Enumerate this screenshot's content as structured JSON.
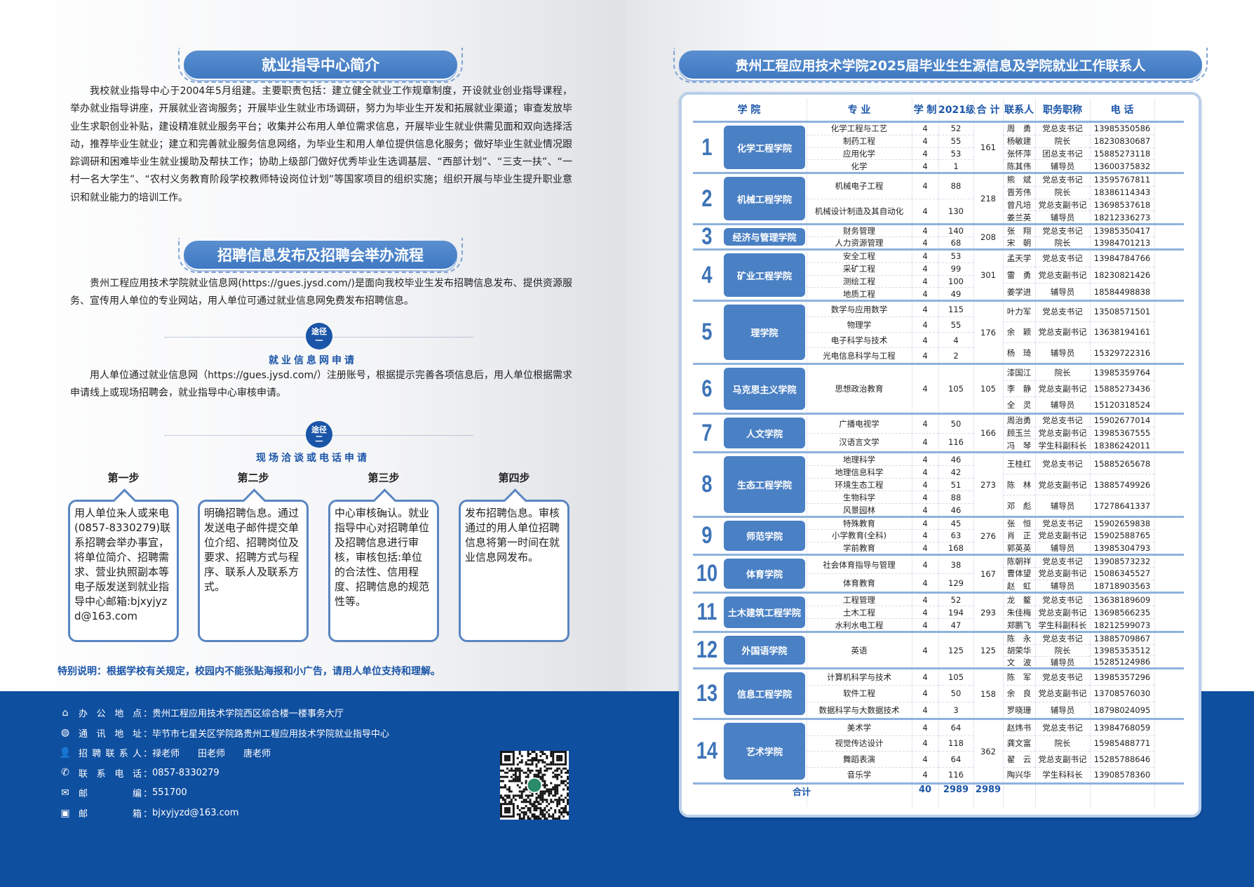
{
  "left": {
    "title1": "就业指导中心简介",
    "intro": "我校就业指导中心于2004年5月组建。主要职责包括：建立健全就业工作规章制度，开设就业创业指导课程，举办就业指导讲座，开展就业咨询服务；开展毕业生就业市场调研，努力为毕业生开发和拓展就业渠道；审查发放毕业生求职创业补贴，建设精准就业服务平台；收集并公布用人单位需求信息，开展毕业生就业供需见面和双向选择活动，推荐毕业生就业；建立和完善就业服务信息网络，为毕业生和用人单位提供信息化服务；做好毕业生就业情况跟踪调研和困难毕业生就业援助及帮扶工作；协助上级部门做好优秀毕业生选调基层、“西部计划”、“三支一扶”、“一村一名大学生”、“农村义务教育阶段学校教师特设岗位计划”等国家项目的组织实施；组织开展与毕业生提升职业意识和就业能力的培训工作。",
    "title2": "招聘信息发布及招聘会举办流程",
    "process_intro": "贵州工程应用技术学院就业信息网(https://gues.jysd.com/)是面向我校毕业生发布招聘信息发布、提供资源服务、宣传用人单位的专业网站，用人单位可通过就业信息网免费发布招聘信息。",
    "route1": {
      "badge_top": "途径",
      "badge_num": "一",
      "title": "就业信息网申请",
      "text": "用人单位通过就业信息网（https://gues.jysd.com/）注册账号，根据提示完善各项信息后，用人单位根据需求申请线上或现场招聘会，就业指导中心审核申请。"
    },
    "route2": {
      "badge_top": "途径",
      "badge_num": "二",
      "title": "现场洽谈或电话申请"
    },
    "steps": [
      {
        "label": "第一步",
        "text": "用人单位来人或来电(0857-8330279)联系招聘会举办事宜，将单位简介、招聘需求、营业执照副本等电子版发送到就业指导中心邮箱:bjxyjyzd@163.com"
      },
      {
        "label": "第二步",
        "text": "明确招聘信息。通过发送电子邮件提交单位介绍、招聘岗位及要求、招聘方式与程序、联系人及联系方式。"
      },
      {
        "label": "第三步",
        "text": "中心审核确认。就业指导中心对招聘单位及招聘信息进行审核，审核包括:单位的合法性、信用程度、招聘信息的规范性等。"
      },
      {
        "label": "第四步",
        "text": "发布招聘信息。审核通过的用人单位招聘信息将第一时间在就业信息网发布。"
      }
    ],
    "note": "特别说明：根据学校有关规定，校园内不能张贴海报和小广告，请用人单位支持和理解。"
  },
  "footer": [
    {
      "icon": "home-icon",
      "key": "办公地点",
      "value": "贵州工程应用技术学院西区综合楼一楼事务大厅"
    },
    {
      "icon": "globe-icon",
      "key": "通讯地址",
      "value": "毕节市七星关区学院路贵州工程应用技术学院就业指导中心"
    },
    {
      "icon": "person-icon",
      "key": "招聘联系人",
      "value": "禄老师　　田老师　　唐老师"
    },
    {
      "icon": "phone-icon",
      "key": "联系电话",
      "value": "0857-8330279"
    },
    {
      "icon": "mail-icon",
      "key": "邮编",
      "value": "551700"
    },
    {
      "icon": "mailbox-icon",
      "key": "邮箱",
      "value": "bjxyjyzd@163.com"
    }
  ],
  "right": {
    "title": "贵州工程应用技术学院2025届毕业生生源信息及学院就业工作联系人",
    "headers": [
      "学 院",
      "专 业",
      "学 制",
      "2021级",
      "合 计",
      "联系人",
      "职务职称",
      "电 话"
    ],
    "groups": [
      {
        "no": "1",
        "college": "化学工程学院",
        "total": "161",
        "majors": [
          [
            "化学工程与工艺",
            "4",
            "52"
          ],
          [
            "制药工程",
            "4",
            "55"
          ],
          [
            "应用化学",
            "4",
            "53"
          ],
          [
            "化学",
            "4",
            "1"
          ]
        ],
        "contacts": [
          [
            "周　勇",
            "党总支书记",
            "13985350586"
          ],
          [
            "杨敏建",
            "院长",
            "18230830687"
          ],
          [
            "张怀萍",
            "团总支书记",
            "15885273118"
          ],
          [
            "陈其伟",
            "辅导员",
            "13600375832"
          ]
        ]
      },
      {
        "no": "2",
        "college": "机械工程学院",
        "total": "218",
        "majors": [
          [
            "机械电子工程",
            "4",
            "88"
          ],
          [
            "机械设计制造及其自动化",
            "4",
            "130"
          ]
        ],
        "contacts": [
          [
            "熊　斌",
            "党总支书记",
            "13595767811"
          ],
          [
            "晋芳伟",
            "院长",
            "18386114343"
          ],
          [
            "曾凡培",
            "党总支副书记",
            "13698537618"
          ],
          [
            "姜兰英",
            "辅导员",
            "18212336273"
          ]
        ]
      },
      {
        "no": "3",
        "college": "经济与管理学院",
        "total": "208",
        "majors": [
          [
            "财务管理",
            "4",
            "140"
          ],
          [
            "人力资源管理",
            "4",
            "68"
          ]
        ],
        "contacts": [
          [
            "张　翔",
            "党总支书记",
            "13985350417"
          ],
          [
            "宋　朝",
            "院长",
            "13984701213"
          ]
        ]
      },
      {
        "no": "4",
        "college": "矿业工程学院",
        "total": "301",
        "majors": [
          [
            "安全工程",
            "4",
            "53"
          ],
          [
            "采矿工程",
            "4",
            "99"
          ],
          [
            "测绘工程",
            "4",
            "100"
          ],
          [
            "地质工程",
            "4",
            "49"
          ]
        ],
        "contacts": [
          [
            "孟天学",
            "党总支书记",
            "13984784766"
          ],
          [
            "雷　勇",
            "党总支副书记",
            "18230821426"
          ],
          [
            "姜学进",
            "辅导员",
            "18584498838"
          ]
        ]
      },
      {
        "no": "5",
        "college": "理学院",
        "total": "176",
        "majors": [
          [
            "数学与应用数学",
            "4",
            "115"
          ],
          [
            "物理学",
            "4",
            "55"
          ],
          [
            "电子科学与技术",
            "4",
            "4"
          ],
          [
            "光电信息科学与工程",
            "4",
            "2"
          ]
        ],
        "contacts": [
          [
            "叶力军",
            "党总支书记",
            "13508571501"
          ],
          [
            "余　颖",
            "党总支副书记",
            "13638194161"
          ],
          [
            "杨　琦",
            "辅导员",
            "15329722316"
          ]
        ]
      },
      {
        "no": "6",
        "college": "马克思主义学院",
        "total": "105",
        "majors": [
          [
            "思想政治教育",
            "4",
            "105"
          ]
        ],
        "contacts": [
          [
            "漆国江",
            "院长",
            "13985359764"
          ],
          [
            "李　静",
            "党总支副书记",
            "15885273436"
          ],
          [
            "全　灵",
            "辅导员",
            "15120318524"
          ]
        ]
      },
      {
        "no": "7",
        "college": "人文学院",
        "total": "166",
        "majors": [
          [
            "广播电视学",
            "4",
            "50"
          ],
          [
            "汉语言文学",
            "4",
            "116"
          ]
        ],
        "contacts": [
          [
            "周治勇",
            "党总支书记",
            "15902677014"
          ],
          [
            "顾玉兰",
            "党总支副书记",
            "13985367555"
          ],
          [
            "冯　琴",
            "学生科副科长",
            "18386242011"
          ]
        ]
      },
      {
        "no": "8",
        "college": "生态工程学院",
        "total": "273",
        "majors": [
          [
            "地理科学",
            "4",
            "46"
          ],
          [
            "地理信息科学",
            "4",
            "42"
          ],
          [
            "环境生态工程",
            "4",
            "51"
          ],
          [
            "生物科学",
            "4",
            "88"
          ],
          [
            "风景园林",
            "4",
            "46"
          ]
        ],
        "contacts": [
          [
            "王桂红",
            "党总支书记",
            "15885265678"
          ],
          [
            "陈　林",
            "党总支副书记",
            "13885749926"
          ],
          [
            "邓　彪",
            "辅导员",
            "17278641337"
          ]
        ]
      },
      {
        "no": "9",
        "college": "师范学院",
        "total": "276",
        "majors": [
          [
            "特殊教育",
            "4",
            "45"
          ],
          [
            "小学教育(全科)",
            "4",
            "63"
          ],
          [
            "学前教育",
            "4",
            "168"
          ]
        ],
        "contacts": [
          [
            "张　恒",
            "党总支书记",
            "15902659838"
          ],
          [
            "肖　正",
            "党总支副书记",
            "15902588765"
          ],
          [
            "郭英英",
            "辅导员",
            "13985304793"
          ]
        ]
      },
      {
        "no": "10",
        "college": "体育学院",
        "total": "167",
        "majors": [
          [
            "社会体育指导与管理",
            "4",
            "38"
          ],
          [
            "体育教育",
            "4",
            "129"
          ]
        ],
        "contacts": [
          [
            "陈朝祥",
            "党总支书记",
            "13908573232"
          ],
          [
            "曹体望",
            "党总支副书记",
            "15086345527"
          ],
          [
            "赵　虹",
            "辅导员",
            "18718903563"
          ]
        ]
      },
      {
        "no": "11",
        "college": "土木建筑工程学院",
        "total": "293",
        "majors": [
          [
            "工程管理",
            "4",
            "52"
          ],
          [
            "土木工程",
            "4",
            "194"
          ],
          [
            "水利水电工程",
            "4",
            "47"
          ]
        ],
        "contacts": [
          [
            "龙　鳌",
            "党总支书记",
            "13638189609"
          ],
          [
            "朱佳梅",
            "党总支副书记",
            "13698566235"
          ],
          [
            "郑鹏飞",
            "学生科副科长",
            "18212599073"
          ]
        ]
      },
      {
        "no": "12",
        "college": "外国语学院",
        "total": "125",
        "majors": [
          [
            "英语",
            "4",
            "125"
          ]
        ],
        "contacts": [
          [
            "陈　永",
            "党总支书记",
            "13885709867"
          ],
          [
            "胡荣华",
            "院长",
            "13985353512"
          ],
          [
            "文　波",
            "辅导员",
            "15285124986"
          ]
        ]
      },
      {
        "no": "13",
        "college": "信息工程学院",
        "total": "158",
        "majors": [
          [
            "计算机科学与技术",
            "4",
            "105"
          ],
          [
            "软件工程",
            "4",
            "50"
          ],
          [
            "数据科学与大数据技术",
            "4",
            "3"
          ]
        ],
        "contacts": [
          [
            "陈　军",
            "党总支书记",
            "13985357296"
          ],
          [
            "余　良",
            "党总支副书记",
            "13708576030"
          ],
          [
            "罗晓珊",
            "辅导员",
            "18798024095"
          ]
        ]
      },
      {
        "no": "14",
        "college": "艺术学院",
        "total": "362",
        "majors": [
          [
            "美术学",
            "4",
            "64"
          ],
          [
            "视觉传达设计",
            "4",
            "118"
          ],
          [
            "舞蹈表演",
            "4",
            "64"
          ],
          [
            "音乐学",
            "4",
            "116"
          ]
        ],
        "contacts": [
          [
            "赵炜书",
            "党总支书记",
            "13984768059"
          ],
          [
            "龚文富",
            "院长",
            "15985488771"
          ],
          [
            "翟　云",
            "党总支副书记",
            "15285788646"
          ],
          [
            "陶兴华",
            "学生科科长",
            "13908578360"
          ]
        ]
      }
    ],
    "total": {
      "label": "合计",
      "years": "40",
      "grade": "2989",
      "sum": "2989"
    }
  },
  "colors": {
    "brand_blue": "#0f4fa0",
    "accent": "#4a80c4"
  }
}
